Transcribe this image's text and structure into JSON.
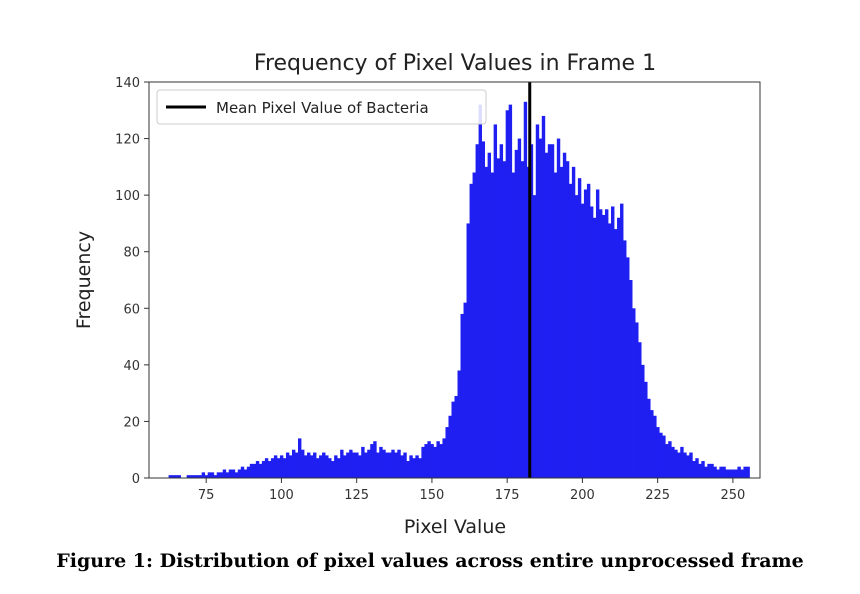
{
  "caption": "Figure 1: Distribution of pixel values across entire unprocessed frame",
  "chart_data": {
    "type": "bar",
    "title": "Frequency of Pixel Values in Frame 1",
    "xlabel": "Pixel Value",
    "ylabel": "Frequency",
    "xlim": [
      56,
      259
    ],
    "ylim": [
      0,
      140
    ],
    "xticks": [
      75,
      100,
      125,
      150,
      175,
      200,
      225,
      250
    ],
    "yticks": [
      0,
      20,
      40,
      60,
      80,
      100,
      120,
      140
    ],
    "bar_color": "#1f1ff2",
    "line_color": "#000000",
    "grid": false,
    "legend_position": "top-left",
    "series": [
      {
        "name": "",
        "x": [
          63,
          64,
          65,
          66,
          67,
          68,
          69,
          70,
          71,
          72,
          73,
          74,
          75,
          76,
          77,
          78,
          79,
          80,
          81,
          82,
          83,
          84,
          85,
          86,
          87,
          88,
          89,
          90,
          91,
          92,
          93,
          94,
          95,
          96,
          97,
          98,
          99,
          100,
          101,
          102,
          103,
          104,
          105,
          106,
          107,
          108,
          109,
          110,
          111,
          112,
          113,
          114,
          115,
          116,
          117,
          118,
          119,
          120,
          121,
          122,
          123,
          124,
          125,
          126,
          127,
          128,
          129,
          130,
          131,
          132,
          133,
          134,
          135,
          136,
          137,
          138,
          139,
          140,
          141,
          142,
          143,
          144,
          145,
          146,
          147,
          148,
          149,
          150,
          151,
          152,
          153,
          154,
          155,
          156,
          157,
          158,
          159,
          160,
          161,
          162,
          163,
          164,
          165,
          166,
          167,
          168,
          169,
          170,
          171,
          172,
          173,
          174,
          175,
          176,
          177,
          178,
          179,
          180,
          181,
          182,
          183,
          184,
          185,
          186,
          187,
          188,
          189,
          190,
          191,
          192,
          193,
          194,
          195,
          196,
          197,
          198,
          199,
          200,
          201,
          202,
          203,
          204,
          205,
          206,
          207,
          208,
          209,
          210,
          211,
          212,
          213,
          214,
          215,
          216,
          217,
          218,
          219,
          220,
          221,
          222,
          223,
          224,
          225,
          226,
          227,
          228,
          229,
          230,
          231,
          232,
          233,
          234,
          235,
          236,
          237,
          238,
          239,
          240,
          241,
          242,
          243,
          244,
          245,
          246,
          247,
          248,
          249,
          250,
          251,
          252,
          253,
          254,
          255
        ],
        "values": [
          1,
          1,
          1,
          1,
          0,
          0,
          1,
          1,
          1,
          1,
          1,
          2,
          1,
          2,
          2,
          1,
          2,
          2,
          3,
          2,
          3,
          3,
          2,
          3,
          4,
          3,
          4,
          5,
          5,
          6,
          5,
          6,
          7,
          6,
          7,
          8,
          7,
          8,
          7,
          9,
          8,
          10,
          9,
          14,
          10,
          8,
          9,
          8,
          9,
          7,
          8,
          9,
          8,
          7,
          6,
          8,
          7,
          10,
          8,
          9,
          10,
          9,
          9,
          8,
          11,
          9,
          10,
          12,
          13,
          9,
          11,
          10,
          9,
          9,
          10,
          9,
          10,
          8,
          9,
          6,
          8,
          7,
          8,
          7,
          11,
          12,
          13,
          12,
          11,
          13,
          12,
          14,
          18,
          22,
          27,
          29,
          38,
          58,
          62,
          90,
          104,
          108,
          118,
          132,
          119,
          110,
          115,
          108,
          125,
          113,
          118,
          112,
          130,
          132,
          108,
          116,
          120,
          112,
          133,
          110,
          118,
          100,
          125,
          120,
          128,
          115,
          118,
          118,
          108,
          120,
          110,
          115,
          112,
          104,
          110,
          100,
          106,
          97,
          102,
          104,
          96,
          92,
          102,
          95,
          93,
          95,
          90,
          96,
          88,
          92,
          97,
          84,
          78,
          70,
          60,
          55,
          48,
          40,
          34,
          28,
          24,
          22,
          18,
          16,
          15,
          12,
          13,
          11,
          10,
          9,
          11,
          9,
          8,
          9,
          6,
          7,
          5,
          6,
          4,
          5,
          5,
          4,
          3,
          4,
          4,
          3,
          3,
          3,
          3,
          4,
          3,
          4,
          4
        ]
      }
    ],
    "vline": {
      "name": "Mean Pixel Value of Bacteria",
      "x": 182.5
    }
  }
}
